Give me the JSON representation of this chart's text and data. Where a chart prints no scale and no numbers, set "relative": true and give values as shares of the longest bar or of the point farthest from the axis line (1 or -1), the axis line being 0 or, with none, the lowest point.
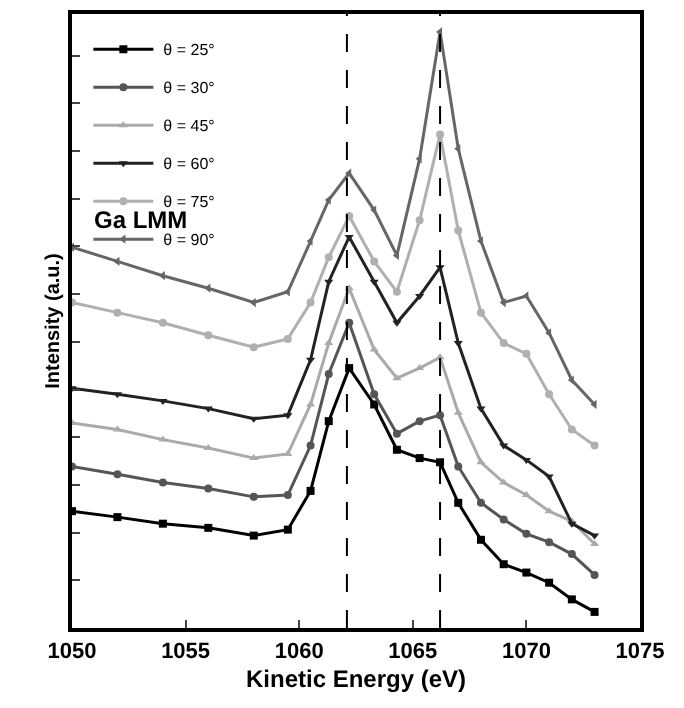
{
  "chart_data": {
    "type": "line",
    "relative": true,
    "xlabel": "Kinetic Energy (eV)",
    "ylabel": "Intensity (a.u.)",
    "x": [
      1050,
      1052,
      1054,
      1056,
      1058,
      1059.5,
      1060.5,
      1061.3,
      1062.2,
      1063.3,
      1064.3,
      1065.3,
      1066.2,
      1067,
      1068,
      1069,
      1070,
      1071,
      1072,
      1073
    ],
    "xlim": [
      1050,
      1075
    ],
    "xticks": [
      1050,
      1055,
      1060,
      1065,
      1070,
      1075
    ],
    "series": [
      {
        "name": "θ = 25°",
        "color": "#000000",
        "marker": "square",
        "values": [
          0.196,
          0.186,
          0.175,
          0.168,
          0.155,
          0.165,
          0.23,
          0.347,
          0.436,
          0.375,
          0.299,
          0.285,
          0.278,
          0.21,
          0.148,
          0.107,
          0.093,
          0.076,
          0.048,
          0.027
        ]
      },
      {
        "name": "θ = 30°",
        "color": "#555555",
        "marker": "circle",
        "values": [
          0.271,
          0.258,
          0.244,
          0.234,
          0.22,
          0.223,
          0.306,
          0.426,
          0.512,
          0.392,
          0.326,
          0.347,
          0.357,
          0.271,
          0.21,
          0.182,
          0.158,
          0.144,
          0.124,
          0.089
        ]
      },
      {
        "name": "θ = 45°",
        "color": "#aaaaaa",
        "marker": "triangle",
        "values": [
          0.344,
          0.333,
          0.316,
          0.302,
          0.285,
          0.292,
          0.375,
          0.478,
          0.57,
          0.467,
          0.419,
          0.436,
          0.454,
          0.361,
          0.278,
          0.244,
          0.223,
          0.196,
          0.179,
          0.141
        ]
      },
      {
        "name": "θ = 60°",
        "color": "#222222",
        "marker": "triangle-down",
        "values": [
          0.402,
          0.392,
          0.381,
          0.368,
          0.351,
          0.357,
          0.45,
          0.581,
          0.656,
          0.581,
          0.512,
          0.557,
          0.605,
          0.478,
          0.368,
          0.306,
          0.282,
          0.254,
          0.175,
          0.155
        ]
      },
      {
        "name": "θ = 75°",
        "color": "#b0b0b0",
        "marker": "circle",
        "values": [
          0.546,
          0.529,
          0.512,
          0.491,
          0.471,
          0.485,
          0.546,
          0.622,
          0.691,
          0.615,
          0.564,
          0.684,
          0.828,
          0.667,
          0.529,
          0.478,
          0.46,
          0.392,
          0.333,
          0.306
        ]
      },
      {
        "name": "θ = 90°",
        "color": "#666666",
        "marker": "triangle-left",
        "values": [
          0.639,
          0.615,
          0.591,
          0.57,
          0.546,
          0.564,
          0.649,
          0.718,
          0.763,
          0.701,
          0.625,
          0.787,
          1.0,
          0.804,
          0.649,
          0.546,
          0.557,
          0.495,
          0.416,
          0.375
        ]
      }
    ],
    "ref_lines": [
      {
        "axis": "x",
        "value": 1062.1,
        "color": "#000000",
        "line_style": "dashed"
      },
      {
        "axis": "x",
        "value": 1066.2,
        "color": "#000000",
        "line_style": "dashed"
      }
    ],
    "annotations": [
      "Ga LMM"
    ],
    "legend": "top left"
  }
}
